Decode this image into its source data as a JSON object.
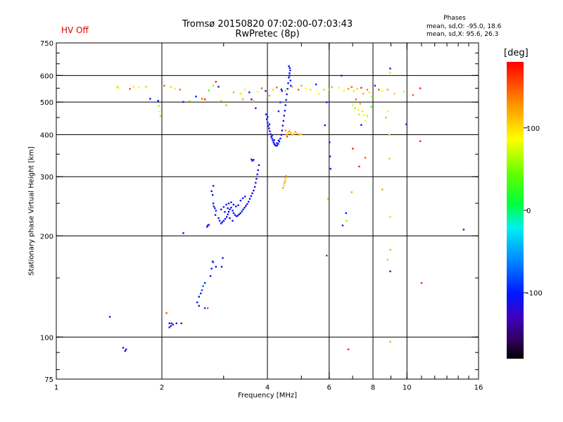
{
  "header": {
    "status": "HV Off",
    "status_color": "#e00000",
    "title_line1": "Tromsø 20150820 07:02:00-07:03:43",
    "title_line2": "RwPretec (8p)",
    "phases_title": "Phases",
    "phases_o": "mean, sd,O: -95.0, 18.6",
    "phases_x": "mean, sd,X:  95.6, 26.3"
  },
  "chart_data": {
    "type": "scatter",
    "title": "Tromsø 20150820 07:02:00-07:03:43",
    "subtitle": "RwPretec (8p)",
    "xlabel": "Frequency [MHz]",
    "ylabel": "Stationary phase Virtual Height [km]",
    "xscale": "log",
    "yscale": "log",
    "xlim": [
      1,
      16
    ],
    "ylim": [
      75,
      750
    ],
    "xticks": [
      1,
      2,
      4,
      6,
      8,
      10,
      16
    ],
    "xtick_labels": [
      "1",
      "2",
      "4",
      "6",
      "8",
      "10",
      "16"
    ],
    "yticks": [
      75,
      100,
      200,
      300,
      400,
      500,
      600,
      750
    ],
    "ytick_labels": [
      "75",
      "100",
      "200",
      "300",
      "400",
      "500",
      "600",
      "750"
    ],
    "grid_x": [
      2,
      4,
      6,
      8,
      10
    ],
    "grid_y": [
      100,
      200,
      300,
      400,
      500,
      600
    ],
    "colorbar": {
      "label": "[deg]",
      "range": [
        -180,
        180
      ],
      "ticks": [
        100,
        0,
        -100
      ],
      "tick_labels": [
        "100",
        "0",
        "-100"
      ],
      "colormap": "rainbow"
    },
    "points": [
      [
        1.49,
        556,
        60
      ],
      [
        1.5,
        552,
        70
      ],
      [
        1.62,
        548,
        150
      ],
      [
        1.66,
        556,
        100
      ],
      [
        1.72,
        553,
        90
      ],
      [
        1.8,
        556,
        110
      ],
      [
        1.85,
        512,
        -100
      ],
      [
        1.95,
        505,
        -100
      ],
      [
        1.96,
        488,
        60
      ],
      [
        1.97,
        470,
        80
      ],
      [
        1.98,
        455,
        60
      ],
      [
        2.03,
        560,
        150
      ],
      [
        2.12,
        555,
        60
      ],
      [
        2.18,
        548,
        90
      ],
      [
        2.25,
        545,
        150
      ],
      [
        2.3,
        501,
        -100
      ],
      [
        2.4,
        505,
        70
      ],
      [
        2.5,
        520,
        -100
      ],
      [
        2.6,
        512,
        150
      ],
      [
        2.65,
        510,
        170
      ],
      [
        2.72,
        542,
        30
      ],
      [
        2.8,
        560,
        110
      ],
      [
        2.85,
        575,
        170
      ],
      [
        2.9,
        556,
        -100
      ],
      [
        2.95,
        505,
        100
      ],
      [
        3.05,
        490,
        120
      ],
      [
        3.2,
        535,
        40
      ],
      [
        3.35,
        530,
        100
      ],
      [
        3.4,
        510,
        120
      ],
      [
        3.45,
        546,
        80
      ],
      [
        3.55,
        535,
        -100
      ],
      [
        3.6,
        510,
        -100
      ],
      [
        3.65,
        503,
        130
      ],
      [
        3.7,
        480,
        -100
      ],
      [
        3.75,
        537,
        80
      ],
      [
        3.85,
        550,
        150
      ],
      [
        3.95,
        540,
        -110
      ],
      [
        4.05,
        523,
        120
      ],
      [
        4.15,
        545,
        60
      ],
      [
        4.25,
        553,
        150
      ],
      [
        4.38,
        546,
        -100
      ],
      [
        4.5,
        540,
        60
      ],
      [
        4.7,
        555,
        120
      ],
      [
        4.9,
        545,
        150
      ],
      [
        5.0,
        560,
        40
      ],
      [
        5.15,
        550,
        90
      ],
      [
        5.3,
        545,
        100
      ],
      [
        5.5,
        565,
        -100
      ],
      [
        5.6,
        530,
        90
      ],
      [
        5.8,
        545,
        60
      ],
      [
        5.9,
        500,
        -100
      ],
      [
        6.0,
        545,
        40
      ],
      [
        6.1,
        555,
        120
      ],
      [
        6.4,
        552,
        80
      ],
      [
        6.6,
        540,
        90
      ],
      [
        6.8,
        548,
        130
      ],
      [
        6.95,
        555,
        150
      ],
      [
        7.05,
        540,
        100
      ],
      [
        7.2,
        548,
        60
      ],
      [
        7.4,
        552,
        170
      ],
      [
        7.5,
        530,
        120
      ],
      [
        7.7,
        545,
        140
      ],
      [
        7.8,
        535,
        100
      ],
      [
        7.95,
        520,
        40
      ],
      [
        8.1,
        560,
        -90
      ],
      [
        8.3,
        545,
        150
      ],
      [
        8.5,
        540,
        80
      ],
      [
        8.8,
        545,
        120
      ],
      [
        9.2,
        530,
        110
      ],
      [
        9.8,
        538,
        70
      ],
      [
        10.4,
        525,
        150
      ],
      [
        10.9,
        550,
        170
      ],
      [
        6.5,
        600,
        -110
      ],
      [
        8.95,
        630,
        -110
      ],
      [
        8.95,
        612,
        100
      ],
      [
        7.0,
        490,
        80
      ],
      [
        7.1,
        480,
        60
      ],
      [
        7.25,
        475,
        90
      ],
      [
        7.3,
        460,
        60
      ],
      [
        7.45,
        470,
        100
      ],
      [
        7.55,
        458,
        80
      ],
      [
        7.6,
        440,
        90
      ],
      [
        7.7,
        455,
        60
      ],
      [
        7.9,
        485,
        30
      ],
      [
        7.35,
        495,
        120
      ],
      [
        7.15,
        510,
        150
      ],
      [
        7.4,
        428,
        -110
      ],
      [
        8.8,
        470,
        90
      ],
      [
        8.9,
        400,
        100
      ],
      [
        8.7,
        450,
        120
      ],
      [
        9.95,
        430,
        -110
      ],
      [
        5.83,
        427,
        -100
      ],
      [
        6.01,
        380,
        -100
      ],
      [
        6.03,
        345,
        -100
      ],
      [
        6.05,
        317,
        -100
      ],
      [
        5.95,
        258,
        120
      ],
      [
        6.55,
        215,
        -110
      ],
      [
        6.7,
        234,
        -100
      ],
      [
        6.72,
        222,
        50
      ],
      [
        7.3,
        322,
        170
      ],
      [
        7.6,
        342,
        150
      ],
      [
        8.9,
        340,
        110
      ],
      [
        10.9,
        383,
        170
      ],
      [
        7.0,
        364,
        170
      ],
      [
        6.95,
        270,
        120
      ],
      [
        8.5,
        275,
        120
      ],
      [
        8.95,
        228,
        100
      ],
      [
        14.5,
        209,
        -110
      ],
      [
        8.95,
        182,
        120
      ],
      [
        8.8,
        170,
        110
      ],
      [
        8.95,
        157,
        -130
      ],
      [
        11.0,
        145,
        170
      ],
      [
        8.95,
        97,
        120
      ],
      [
        6.8,
        92,
        170
      ],
      [
        5.9,
        175,
        -80
      ],
      [
        1.42,
        115,
        -100
      ],
      [
        1.55,
        93,
        -110
      ],
      [
        1.57,
        91,
        -120
      ],
      [
        1.58,
        92,
        -110
      ],
      [
        2.06,
        118,
        150
      ],
      [
        2.3,
        204,
        -110
      ],
      [
        2.1,
        107,
        -110
      ],
      [
        2.12,
        108,
        -110
      ],
      [
        2.13,
        110,
        -100
      ],
      [
        2.15,
        109,
        -110
      ],
      [
        2.2,
        110,
        -100
      ],
      [
        2.27,
        110,
        -110
      ],
      [
        2.1,
        110,
        -120
      ],
      [
        2.52,
        127,
        -100
      ],
      [
        2.55,
        132,
        -110
      ],
      [
        2.58,
        135,
        -100
      ],
      [
        2.6,
        138,
        -90
      ],
      [
        2.62,
        142,
        -80
      ],
      [
        2.65,
        145,
        -100
      ],
      [
        2.7,
        122,
        150
      ],
      [
        2.55,
        124,
        -110
      ],
      [
        2.75,
        152,
        -100
      ],
      [
        2.77,
        160,
        -100
      ],
      [
        2.79,
        168,
        -110
      ],
      [
        2.8,
        167,
        -70
      ],
      [
        2.85,
        162,
        -110
      ],
      [
        2.96,
        162,
        -120
      ],
      [
        2.98,
        172,
        -100
      ],
      [
        2.65,
        122,
        -90
      ],
      [
        2.69,
        213,
        -100
      ],
      [
        2.7,
        215,
        -110
      ],
      [
        2.72,
        216,
        -100
      ],
      [
        2.77,
        272,
        -110
      ],
      [
        2.79,
        265,
        -100
      ],
      [
        2.8,
        250,
        -110
      ],
      [
        2.81,
        245,
        -110
      ],
      [
        2.83,
        242,
        -100
      ],
      [
        2.85,
        238,
        -110
      ],
      [
        2.8,
        282,
        -100
      ],
      [
        2.84,
        231,
        -110
      ],
      [
        2.9,
        226,
        -100
      ],
      [
        2.92,
        222,
        -120
      ],
      [
        2.95,
        218,
        -110
      ],
      [
        2.97,
        220,
        -100
      ],
      [
        3.0,
        222,
        -110
      ],
      [
        3.03,
        225,
        -120
      ],
      [
        3.06,
        228,
        -110
      ],
      [
        3.08,
        232,
        -100
      ],
      [
        3.1,
        236,
        -110
      ],
      [
        3.12,
        240,
        -120
      ],
      [
        3.15,
        243,
        -110
      ],
      [
        3.18,
        238,
        -100
      ],
      [
        3.2,
        234,
        -110
      ],
      [
        3.23,
        231,
        -100
      ],
      [
        3.26,
        229,
        -110
      ],
      [
        3.29,
        230,
        -120
      ],
      [
        3.32,
        232,
        -110
      ],
      [
        3.35,
        234,
        -100
      ],
      [
        3.38,
        237,
        -110
      ],
      [
        3.41,
        240,
        -100
      ],
      [
        3.44,
        243,
        -110
      ],
      [
        3.47,
        246,
        -120
      ],
      [
        3.5,
        249,
        -110
      ],
      [
        3.53,
        253,
        -100
      ],
      [
        3.56,
        258,
        -110
      ],
      [
        3.59,
        263,
        -100
      ],
      [
        3.62,
        268,
        -110
      ],
      [
        3.65,
        273,
        -120
      ],
      [
        3.68,
        280,
        -110
      ],
      [
        3.7,
        288,
        -100
      ],
      [
        3.72,
        296,
        -110
      ],
      [
        3.74,
        305,
        -100
      ],
      [
        3.76,
        314,
        -110
      ],
      [
        3.78,
        325,
        -120
      ],
      [
        3.05,
        248,
        -100
      ],
      [
        3.1,
        250,
        -110
      ],
      [
        3.15,
        252,
        -100
      ],
      [
        3.2,
        248,
        -120
      ],
      [
        3.25,
        245,
        -110
      ],
      [
        3.3,
        247,
        -100
      ],
      [
        3.35,
        255,
        -110
      ],
      [
        3.4,
        259,
        -100
      ],
      [
        3.45,
        262,
        -110
      ],
      [
        3.0,
        244,
        -100
      ],
      [
        2.95,
        240,
        -110
      ],
      [
        3.02,
        236,
        -110
      ],
      [
        3.08,
        242,
        -100
      ],
      [
        3.12,
        226,
        -120
      ],
      [
        3.18,
        222,
        -110
      ],
      [
        3.62,
        335,
        -110
      ],
      [
        3.6,
        338,
        -100
      ],
      [
        3.65,
        337,
        -110
      ],
      [
        3.98,
        445,
        -110
      ],
      [
        4.0,
        435,
        -100
      ],
      [
        4.02,
        425,
        -110
      ],
      [
        4.04,
        418,
        -110
      ],
      [
        4.06,
        410,
        -100
      ],
      [
        4.08,
        402,
        -110
      ],
      [
        4.1,
        395,
        -120
      ],
      [
        4.12,
        390,
        -110
      ],
      [
        4.14,
        385,
        -100
      ],
      [
        4.16,
        380,
        -110
      ],
      [
        4.18,
        376,
        -110
      ],
      [
        4.2,
        373,
        -100
      ],
      [
        4.23,
        371,
        -120
      ],
      [
        4.26,
        372,
        -110
      ],
      [
        4.29,
        376,
        -100
      ],
      [
        4.32,
        382,
        -110
      ],
      [
        4.35,
        390,
        -100
      ],
      [
        4.38,
        400,
        -110
      ],
      [
        4.4,
        412,
        -120
      ],
      [
        4.42,
        426,
        -110
      ],
      [
        4.44,
        440,
        -100
      ],
      [
        4.46,
        456,
        -110
      ],
      [
        4.48,
        472,
        -110
      ],
      [
        4.5,
        490,
        -100
      ],
      [
        4.52,
        508,
        -110
      ],
      [
        4.54,
        528,
        -120
      ],
      [
        4.56,
        548,
        -110
      ],
      [
        4.58,
        570,
        -100
      ],
      [
        4.6,
        592,
        -110
      ],
      [
        4.62,
        610,
        -100
      ],
      [
        4.64,
        622,
        -110
      ],
      [
        4.63,
        632,
        -110
      ],
      [
        4.6,
        640,
        -100
      ],
      [
        4.62,
        600,
        -110
      ],
      [
        4.65,
        580,
        -100
      ],
      [
        4.66,
        560,
        -110
      ],
      [
        4.0,
        452,
        -100
      ],
      [
        4.05,
        430,
        -110
      ],
      [
        4.12,
        398,
        -100
      ],
      [
        4.18,
        386,
        -110
      ],
      [
        4.25,
        378,
        -100
      ],
      [
        4.3,
        385,
        -110
      ],
      [
        3.96,
        460,
        -110
      ],
      [
        4.3,
        470,
        -120
      ],
      [
        4.35,
        500,
        -110
      ],
      [
        4.4,
        540,
        -110
      ],
      [
        4.43,
        278,
        120
      ],
      [
        4.45,
        283,
        110
      ],
      [
        4.47,
        288,
        130
      ],
      [
        4.49,
        292,
        120
      ],
      [
        4.5,
        297,
        110
      ],
      [
        4.52,
        302,
        120
      ],
      [
        4.54,
        400,
        120
      ],
      [
        4.58,
        406,
        110
      ],
      [
        4.62,
        410,
        130
      ],
      [
        4.66,
        405,
        120
      ],
      [
        4.7,
        400,
        110
      ],
      [
        4.75,
        402,
        120
      ],
      [
        4.8,
        408,
        130
      ],
      [
        4.86,
        404,
        110
      ],
      [
        4.92,
        400,
        120
      ],
      [
        4.98,
        402,
        100
      ],
      [
        4.55,
        395,
        150
      ],
      [
        4.5,
        412,
        130
      ]
    ]
  }
}
